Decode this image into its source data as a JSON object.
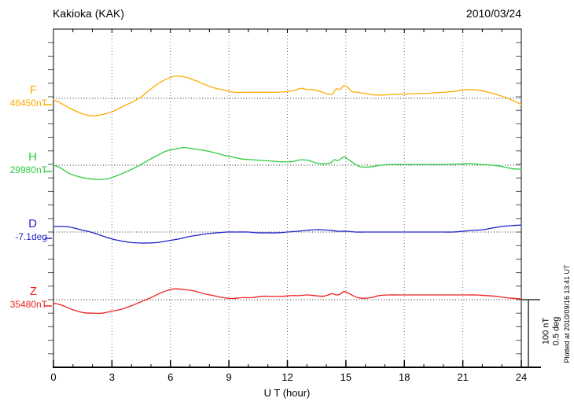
{
  "header": {
    "title": "Kakioka (KAK)",
    "date": "2010/03/24"
  },
  "xaxis": {
    "label": "U T (hour)",
    "tick_labels": [
      "0",
      "3",
      "6",
      "9",
      "12",
      "15",
      "18",
      "21",
      "24"
    ]
  },
  "scale_bar": {
    "line1": "100 nT",
    "line2": "0.5 deg"
  },
  "footer_note": "Plotted at 2010/09/16 13:41 UT",
  "panels": [
    {
      "id": "F",
      "label": "F",
      "value": "46450nT",
      "color": "#FFAA00"
    },
    {
      "id": "H",
      "label": "H",
      "value": "29980nT",
      "color": "#2ECC40"
    },
    {
      "id": "D",
      "label": "D",
      "value": "-7.1deg",
      "color": "#2222CC"
    },
    {
      "id": "Z",
      "label": "Z",
      "value": "35480nT",
      "color": "#EE2222"
    }
  ],
  "chart_data": {
    "type": "line",
    "title": "Kakioka (KAK) geomagnetic components, 2010/03/24",
    "xlabel": "U T (hour)",
    "x_range": [
      0,
      24
    ],
    "x_major_ticks": [
      0,
      3,
      6,
      9,
      12,
      15,
      18,
      21,
      24
    ],
    "grid": "vertical dotted lines every 3 hours; dotted horizontal reference line per component",
    "legend_position": "left margin (component letter + reference value)",
    "scale": {
      "nT_per_division": 100,
      "deg_per_division": 0.5
    },
    "series": [
      {
        "name": "F",
        "reference_value": "46450nT",
        "unit": "nT",
        "color": "#FFAA00",
        "points": [
          [
            0,
            -2
          ],
          [
            0.3,
            -6
          ],
          [
            0.8,
            -14
          ],
          [
            1.5,
            -23
          ],
          [
            2,
            -26
          ],
          [
            2.5,
            -24
          ],
          [
            3,
            -20
          ],
          [
            3.5,
            -13
          ],
          [
            4,
            -6
          ],
          [
            4.5,
            2
          ],
          [
            5,
            14
          ],
          [
            5.5,
            24
          ],
          [
            6,
            31
          ],
          [
            6.3,
            33
          ],
          [
            6.8,
            31
          ],
          [
            7.3,
            26
          ],
          [
            7.8,
            20
          ],
          [
            8.3,
            15
          ],
          [
            8.8,
            12
          ],
          [
            9.3,
            9
          ],
          [
            10,
            9
          ],
          [
            10.5,
            9
          ],
          [
            11,
            9
          ],
          [
            11.5,
            9
          ],
          [
            12,
            10
          ],
          [
            12.4,
            12
          ],
          [
            12.7,
            15
          ],
          [
            13,
            13
          ],
          [
            13.3,
            13
          ],
          [
            13.7,
            10
          ],
          [
            14,
            7
          ],
          [
            14.3,
            6
          ],
          [
            14.5,
            14
          ],
          [
            14.7,
            13
          ],
          [
            14.9,
            19
          ],
          [
            15.1,
            16
          ],
          [
            15.3,
            10
          ],
          [
            15.6,
            9
          ],
          [
            16,
            7
          ],
          [
            16.5,
            5
          ],
          [
            17,
            5
          ],
          [
            17.5,
            6
          ],
          [
            18,
            6
          ],
          [
            18.5,
            7
          ],
          [
            19,
            7
          ],
          [
            19.5,
            8
          ],
          [
            20,
            9
          ],
          [
            20.5,
            10
          ],
          [
            21,
            12
          ],
          [
            21.3,
            13
          ],
          [
            21.8,
            12
          ],
          [
            22.3,
            9
          ],
          [
            22.8,
            5
          ],
          [
            23.3,
            0
          ],
          [
            23.7,
            -5
          ],
          [
            24,
            -9
          ]
        ]
      },
      {
        "name": "H",
        "reference_value": "29980nT",
        "unit": "nT",
        "color": "#2ECC40",
        "points": [
          [
            0,
            0
          ],
          [
            0.3,
            -3
          ],
          [
            0.8,
            -12
          ],
          [
            1.3,
            -17
          ],
          [
            1.8,
            -20
          ],
          [
            2.3,
            -21
          ],
          [
            2.8,
            -20
          ],
          [
            3.3,
            -15
          ],
          [
            3.8,
            -9
          ],
          [
            4.3,
            -2
          ],
          [
            4.8,
            6
          ],
          [
            5.3,
            14
          ],
          [
            5.8,
            21
          ],
          [
            6.3,
            24
          ],
          [
            6.7,
            26
          ],
          [
            7.2,
            24
          ],
          [
            7.7,
            22
          ],
          [
            8.2,
            19
          ],
          [
            8.7,
            15
          ],
          [
            9.2,
            12
          ],
          [
            9.7,
            9
          ],
          [
            10.2,
            8
          ],
          [
            10.7,
            7
          ],
          [
            11.2,
            6
          ],
          [
            11.7,
            5
          ],
          [
            12.2,
            5
          ],
          [
            12.5,
            7
          ],
          [
            12.8,
            8
          ],
          [
            13.1,
            7
          ],
          [
            13.5,
            3
          ],
          [
            13.9,
            2
          ],
          [
            14.2,
            3
          ],
          [
            14.4,
            8
          ],
          [
            14.6,
            7
          ],
          [
            14.9,
            12
          ],
          [
            15.1,
            9
          ],
          [
            15.4,
            3
          ],
          [
            15.7,
            -2
          ],
          [
            16,
            -3
          ],
          [
            16.4,
            -2
          ],
          [
            16.8,
            0
          ],
          [
            17.3,
            1
          ],
          [
            18,
            1
          ],
          [
            19,
            1
          ],
          [
            20,
            1
          ],
          [
            21,
            2
          ],
          [
            21.5,
            2
          ],
          [
            22,
            1
          ],
          [
            22.5,
            0
          ],
          [
            23,
            -2
          ],
          [
            23.5,
            -5
          ],
          [
            24,
            -6
          ]
        ]
      },
      {
        "name": "D",
        "reference_value": "-7.1deg",
        "unit": "deg",
        "color": "#2222CC",
        "points": [
          [
            0,
            0.041
          ],
          [
            0.5,
            0.041
          ],
          [
            0.9,
            0.035
          ],
          [
            1.4,
            0.017
          ],
          [
            1.9,
            0
          ],
          [
            2.4,
            -0.023
          ],
          [
            2.9,
            -0.047
          ],
          [
            3.4,
            -0.064
          ],
          [
            3.9,
            -0.076
          ],
          [
            4.4,
            -0.081
          ],
          [
            4.9,
            -0.081
          ],
          [
            5.4,
            -0.076
          ],
          [
            5.9,
            -0.064
          ],
          [
            6.4,
            -0.052
          ],
          [
            6.9,
            -0.035
          ],
          [
            7.4,
            -0.023
          ],
          [
            7.9,
            -0.012
          ],
          [
            8.4,
            -0.006
          ],
          [
            8.9,
            0
          ],
          [
            9.4,
            0
          ],
          [
            10,
            0
          ],
          [
            10.5,
            -0.006
          ],
          [
            11,
            -0.006
          ],
          [
            11.5,
            -0.006
          ],
          [
            12,
            0
          ],
          [
            12.5,
            0.006
          ],
          [
            13,
            0.012
          ],
          [
            13.4,
            0.017
          ],
          [
            13.8,
            0.017
          ],
          [
            14.2,
            0.012
          ],
          [
            14.6,
            0.006
          ],
          [
            15,
            0.006
          ],
          [
            15.5,
            0
          ],
          [
            16,
            0
          ],
          [
            17,
            0
          ],
          [
            18,
            0
          ],
          [
            19,
            0
          ],
          [
            20,
            0
          ],
          [
            20.5,
            0
          ],
          [
            21,
            0.006
          ],
          [
            21.5,
            0.012
          ],
          [
            22,
            0.017
          ],
          [
            22.5,
            0.029
          ],
          [
            23,
            0.041
          ],
          [
            23.5,
            0.047
          ],
          [
            24,
            0.052
          ]
        ]
      },
      {
        "name": "Z",
        "reference_value": "35480nT",
        "unit": "nT",
        "color": "#EE2222",
        "points": [
          [
            0,
            -5
          ],
          [
            0.5,
            -9
          ],
          [
            1,
            -15
          ],
          [
            1.5,
            -19
          ],
          [
            2,
            -20
          ],
          [
            2.5,
            -20
          ],
          [
            3,
            -17
          ],
          [
            3.5,
            -14
          ],
          [
            4,
            -9
          ],
          [
            4.5,
            -3
          ],
          [
            5,
            3
          ],
          [
            5.5,
            10
          ],
          [
            6,
            15
          ],
          [
            6.3,
            16
          ],
          [
            6.7,
            15
          ],
          [
            7.2,
            13
          ],
          [
            7.7,
            9
          ],
          [
            8.2,
            6
          ],
          [
            8.7,
            3
          ],
          [
            9,
            2
          ],
          [
            9.3,
            2
          ],
          [
            9.7,
            3
          ],
          [
            10.2,
            3
          ],
          [
            10.7,
            5
          ],
          [
            11.2,
            5
          ],
          [
            11.7,
            5
          ],
          [
            12.2,
            6
          ],
          [
            12.6,
            6
          ],
          [
            13,
            7
          ],
          [
            13.4,
            6
          ],
          [
            13.8,
            5
          ],
          [
            14.1,
            7
          ],
          [
            14.3,
            9
          ],
          [
            14.5,
            7
          ],
          [
            14.7,
            8
          ],
          [
            14.9,
            12
          ],
          [
            15.1,
            10
          ],
          [
            15.3,
            7
          ],
          [
            15.6,
            3
          ],
          [
            15.9,
            2
          ],
          [
            16.3,
            3
          ],
          [
            16.7,
            6
          ],
          [
            17.2,
            7
          ],
          [
            17.7,
            7
          ],
          [
            18.2,
            7
          ],
          [
            18.7,
            7
          ],
          [
            19.2,
            7
          ],
          [
            19.7,
            7
          ],
          [
            20.2,
            7
          ],
          [
            20.7,
            7
          ],
          [
            21.2,
            7
          ],
          [
            21.7,
            7
          ],
          [
            22.2,
            6
          ],
          [
            22.7,
            5
          ],
          [
            23.2,
            3
          ],
          [
            23.6,
            2
          ],
          [
            24,
            1
          ]
        ]
      }
    ]
  }
}
